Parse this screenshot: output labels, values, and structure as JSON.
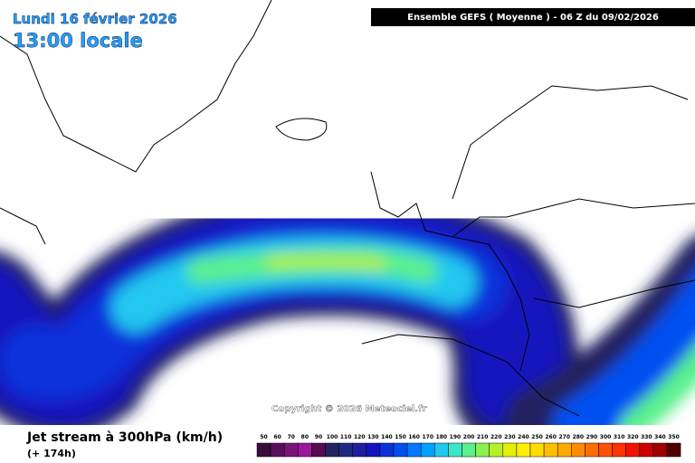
{
  "header": {
    "date": "Lundi 16 février 2026",
    "time": "13:00 locale",
    "model": "Ensemble GEFS  ( Moyenne )  -  06 Z du 09/02/2026"
  },
  "map": {
    "copyright": "Copyright © 2026 Meteociel.fr"
  },
  "legend": {
    "title": "Jet stream à 300hPa (km/h)",
    "lead": "(+ 174h)",
    "labels": [
      50,
      60,
      70,
      80,
      90,
      100,
      110,
      120,
      130,
      140,
      150,
      160,
      170,
      180,
      190,
      200,
      210,
      220,
      230,
      240,
      250,
      260,
      270,
      280,
      290,
      300,
      310,
      320,
      330,
      340,
      350
    ],
    "colors": [
      "#3a0a3a",
      "#5a0f5a",
      "#7a147a",
      "#96199a",
      "#5a0a50",
      "#232360",
      "#1e2a80",
      "#1e1ea0",
      "#1414be",
      "#0a32dc",
      "#0050f0",
      "#0078ff",
      "#00a0ff",
      "#20c8f0",
      "#3ce6c8",
      "#5af08c",
      "#8cf050",
      "#b4f028",
      "#e6f000",
      "#fff000",
      "#ffdc00",
      "#ffc000",
      "#ffaa00",
      "#ff8c00",
      "#ff6e00",
      "#ff5000",
      "#ff3200",
      "#f01400",
      "#c80000",
      "#a00000",
      "#500000"
    ]
  }
}
